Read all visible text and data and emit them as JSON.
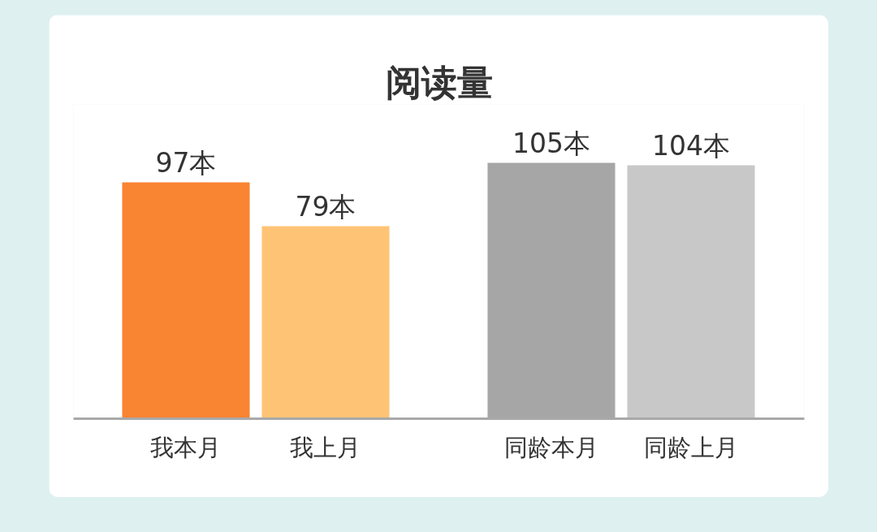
{
  "chart_data": {
    "type": "bar",
    "title": "阅读量",
    "categories": [
      "我本月",
      "我上月",
      "同龄本月",
      "同龄上月"
    ],
    "values": [
      97,
      79,
      105,
      104
    ],
    "colors": [
      "#f98432",
      "#ffc375",
      "#a6a6a6",
      "#c8c8c8"
    ],
    "value_labels": [
      "97本",
      "79本",
      "105本",
      "104本"
    ],
    "tick_labels": "x"
  }
}
